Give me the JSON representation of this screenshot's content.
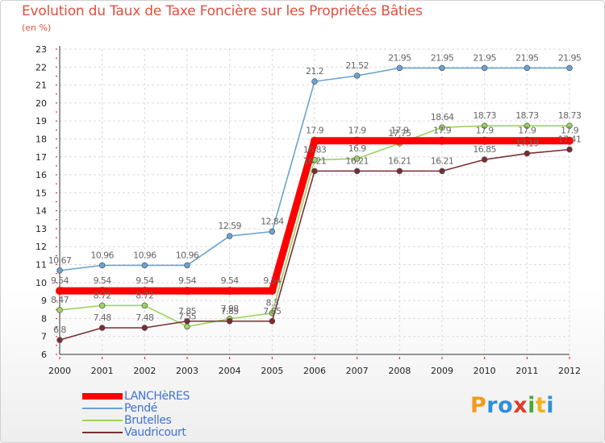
{
  "header": {
    "title": "Evolution du Taux de Taxe Foncière sur les Propriétés Bâties",
    "subtitle": "(en %)"
  },
  "chart_data": {
    "type": "line",
    "title": "Evolution du Taux de Taxe Foncière sur les Propriétés Bâties",
    "ylabel": "(en %)",
    "xlabel": "",
    "x": [
      "2000",
      "2001",
      "2002",
      "2003",
      "2004",
      "2005",
      "2006",
      "2007",
      "2008",
      "2009",
      "2010",
      "2011",
      "2012"
    ],
    "ylim": [
      6,
      23
    ],
    "yticks": [
      6,
      7,
      8,
      9,
      10,
      11,
      12,
      13,
      14,
      15,
      16,
      17,
      18,
      19,
      20,
      21,
      22,
      23
    ],
    "grid": true,
    "legend_position": "bottom-left",
    "series": [
      {
        "name": "LANCHèRES",
        "color": "#ff0000",
        "values": [
          9.54,
          9.54,
          9.54,
          9.54,
          9.54,
          9.54,
          17.9,
          17.9,
          17.9,
          17.9,
          17.9,
          17.9,
          17.9
        ],
        "labels": [
          "9.54",
          "9.54",
          "9.54",
          "9.54",
          "9.54",
          "9.54",
          "17.9",
          "17.9",
          "17.9",
          "17.9",
          "17.9",
          "17.9",
          "17.9"
        ]
      },
      {
        "name": "Pendé",
        "color": "#6aa3d2",
        "values": [
          10.67,
          10.96,
          10.96,
          10.96,
          12.59,
          12.84,
          21.2,
          21.52,
          21.95,
          21.95,
          21.95,
          21.95,
          21.95
        ],
        "labels": [
          "10.67",
          "10.96",
          "10.96",
          "10.96",
          "12.59",
          "12.84",
          "21.2",
          "21.52",
          "21.95",
          "21.95",
          "21.95",
          "21.95",
          "21.95"
        ]
      },
      {
        "name": "Brutelles",
        "color": "#99d45f",
        "values": [
          8.47,
          8.72,
          8.72,
          7.55,
          7.98,
          8.3,
          16.83,
          16.9,
          17.75,
          18.64,
          18.73,
          18.73,
          18.73
        ],
        "labels": [
          "8.47",
          "8.72",
          "8.72",
          "7.55",
          "7.98",
          "8.3",
          "16.83",
          "16.9",
          "17.75",
          "18.64",
          "18.73",
          "18.73",
          "18.73"
        ]
      },
      {
        "name": "Vaudricourt",
        "color": "#7a2e34",
        "values": [
          6.8,
          7.48,
          7.48,
          7.85,
          7.85,
          7.85,
          16.21,
          16.21,
          16.21,
          16.21,
          16.85,
          17.19,
          17.41
        ],
        "labels": [
          "6.8",
          "7.48",
          "7.48",
          "7.85",
          "7.85",
          "7.85",
          "16.21",
          "16.21",
          "16.21",
          "16.21",
          "16.85",
          "17.19",
          "17.41"
        ]
      }
    ]
  },
  "logo": {
    "text": "Proxiti"
  }
}
